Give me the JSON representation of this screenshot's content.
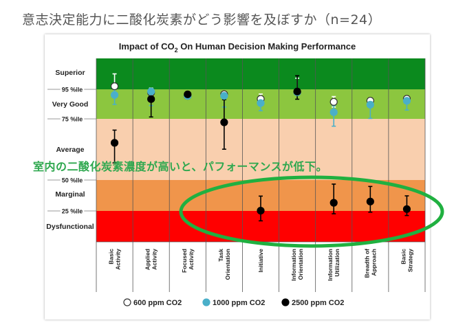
{
  "header": {
    "title": "意志決定能力に二酸化炭素がどう影響を及ぼすか（n=24）"
  },
  "overlay_note": "室内の二酸化炭素濃度が高いと、パフォーマンスが低下。",
  "colors": {
    "superior": "#0b8a1e",
    "very_good": "#8cc63f",
    "average": "#f9cfae",
    "marginal": "#f0954b",
    "dysfunctional": "#ff0000",
    "s600": "#ffffff",
    "s1000": "#4aafc9",
    "s2500": "#000000",
    "highlight_ellipse": "#20b040"
  },
  "chart_data": {
    "type": "scatter",
    "title": "Impact of CO₂ On Human Decision Making Performance",
    "title_parts": {
      "prefix": "Impact of CO",
      "subscript": "2",
      "suffix": " On Human Decision Making Performance"
    },
    "categories": [
      [
        "Basic",
        "Activity"
      ],
      [
        "Applied",
        "Activity"
      ],
      [
        "Focused",
        "Activity"
      ],
      [
        "Task",
        "Orientation"
      ],
      [
        "Initiative"
      ],
      [
        "Information",
        "Orientation"
      ],
      [
        "Information",
        "Utilization"
      ],
      [
        "Breadth of",
        "Approach"
      ],
      [
        "Basic",
        "Strategy"
      ]
    ],
    "band_labels": [
      "Superior",
      "Very Good",
      "Average",
      "Marginal",
      "Dysfunctional"
    ],
    "threshold_labels": [
      "95 %ile",
      "75 %ile",
      "50 %ile",
      "25 %ile"
    ],
    "series": [
      {
        "name": "600 ppm CO2",
        "color_key": "s600",
        "values": [
          95.5,
          92.8,
          90.5,
          91.7,
          88.5,
          93,
          86.5,
          87.3,
          88.6
        ],
        "err": [
          [
            92.8,
            97.5
          ],
          [
            89.2,
            95.2
          ],
          [
            90,
            90.5
          ],
          [
            89,
            93.7
          ],
          [
            86,
            91.8
          ],
          [
            91.5,
            96.8
          ],
          [
            83,
            90.1
          ],
          [
            84,
            89
          ],
          [
            87.3,
            90
          ]
        ]
      },
      {
        "name": "1000 ppm CO2",
        "color_key": "s1000",
        "values": [
          91.2,
          93.5,
          90.5,
          90.6,
          85.7,
          93,
          79.5,
          84.6,
          87.2
        ],
        "err": [
          [
            84.8,
            94.8
          ],
          [
            84,
            94.5
          ],
          [
            89.8,
            91.2
          ],
          [
            83,
            93.5
          ],
          [
            80.5,
            88.5
          ],
          [
            91.5,
            94.3
          ],
          [
            72,
            84
          ],
          [
            75.3,
            86.5
          ],
          [
            81,
            90
          ]
        ]
      },
      {
        "name": "2500 ppm CO2",
        "color_key": "s2500",
        "values": [
          65.2,
          88.4,
          91.6,
          73.6,
          25.2,
          93.5,
          31.6,
          32.6,
          26.5
        ],
        "err": [
          [
            57,
            70.4
          ],
          [
            76.3,
            93
          ],
          [
            90.1,
            93.3
          ],
          [
            62.6,
            88
          ],
          [
            17,
            37
          ],
          [
            88.3,
            97.2
          ],
          [
            22.7,
            46.7
          ],
          [
            24,
            44.8
          ],
          [
            21.3,
            37.2
          ]
        ]
      }
    ]
  }
}
